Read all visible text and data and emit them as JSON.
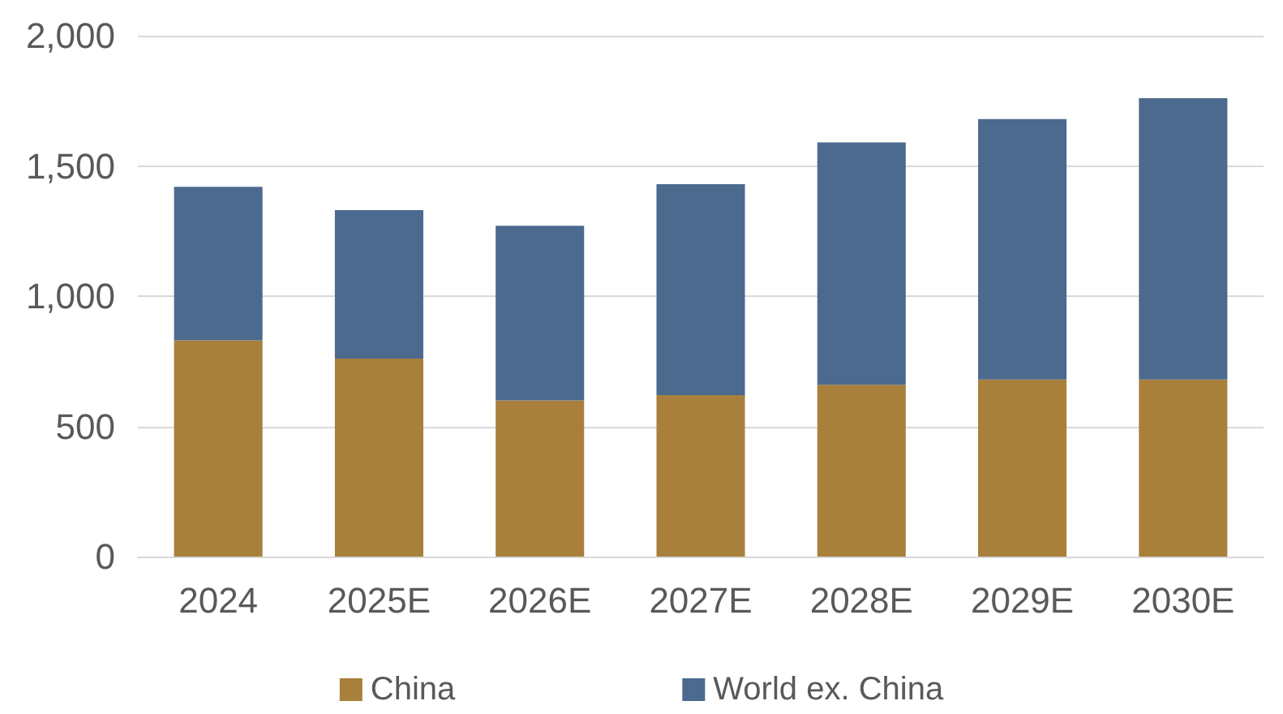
{
  "chart_data": {
    "type": "bar",
    "stacked": true,
    "categories": [
      "2024",
      "2025E",
      "2026E",
      "2027E",
      "2028E",
      "2029E",
      "2030E"
    ],
    "series": [
      {
        "name": "China",
        "color": "#a8803b",
        "values": [
          830,
          760,
          600,
          620,
          660,
          680,
          680
        ]
      },
      {
        "name": "World ex. China",
        "color": "#4b6a8e",
        "values": [
          590,
          570,
          670,
          810,
          930,
          1000,
          1080
        ]
      }
    ],
    "ylim": [
      0,
      2000
    ],
    "yticks": [
      {
        "value": 0,
        "label": "0"
      },
      {
        "value": 500,
        "label": "500"
      },
      {
        "value": 1000,
        "label": "1,000"
      },
      {
        "value": 1500,
        "label": "1,500"
      },
      {
        "value": 2000,
        "label": "2,000"
      }
    ],
    "grid": "y",
    "legend": "bottom"
  }
}
